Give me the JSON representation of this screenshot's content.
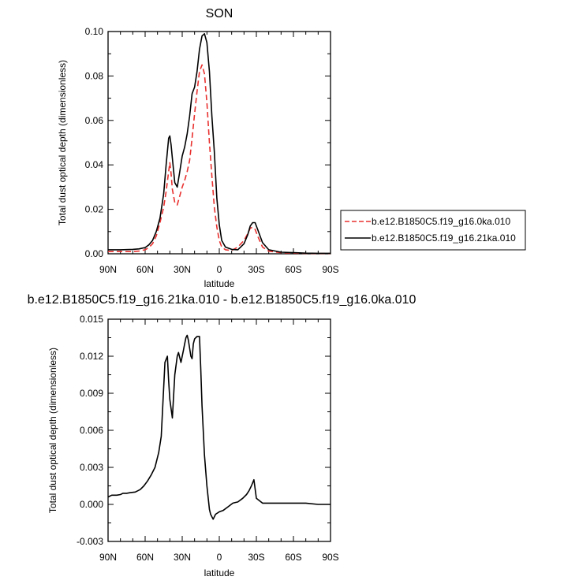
{
  "chart_data": [
    {
      "type": "line",
      "title": "SON",
      "xlabel": "latitude",
      "ylabel": "Total dust optical depth (dimensionless)",
      "xlim": [
        90,
        -90
      ],
      "ylim": [
        0,
        0.1
      ],
      "yticks": [
        "0.00",
        "0.02",
        "0.04",
        "0.06",
        "0.08",
        "0.10"
      ],
      "xticks": [
        {
          "value": 90,
          "label": "90N"
        },
        {
          "value": 60,
          "label": "60N"
        },
        {
          "value": 30,
          "label": "30N"
        },
        {
          "value": 0,
          "label": "0"
        },
        {
          "value": -30,
          "label": "30S"
        },
        {
          "value": -60,
          "label": "60S"
        },
        {
          "value": -90,
          "label": "90S"
        }
      ],
      "legend_position": "right",
      "series": [
        {
          "name": "b.e12.B1850C5.f19_g16.0ka.010",
          "color": "#e8312f",
          "dashed": true,
          "x": [
            90,
            80,
            70,
            65,
            60,
            57,
            54,
            51,
            48,
            45,
            43,
            41,
            40,
            39,
            38,
            36,
            34,
            32,
            30,
            28,
            26,
            24,
            22,
            20,
            18,
            16,
            14,
            12,
            10,
            8,
            6,
            4,
            2,
            0,
            -2,
            -5,
            -10,
            -15,
            -20,
            -23,
            -25,
            -27,
            -29,
            -31,
            -35,
            -40,
            -50,
            -60,
            -70,
            -80,
            -90
          ],
          "values": [
            0.001,
            0.001,
            0.001,
            0.0012,
            0.0018,
            0.0028,
            0.0045,
            0.008,
            0.014,
            0.021,
            0.028,
            0.037,
            0.041,
            0.036,
            0.029,
            0.023,
            0.022,
            0.026,
            0.03,
            0.033,
            0.037,
            0.042,
            0.052,
            0.063,
            0.073,
            0.082,
            0.085,
            0.081,
            0.068,
            0.05,
            0.035,
            0.021,
            0.012,
            0.006,
            0.003,
            0.0018,
            0.0015,
            0.003,
            0.006,
            0.009,
            0.0115,
            0.012,
            0.011,
            0.008,
            0.003,
            0.0012,
            0.0005,
            0.0003,
            0.0002,
            0.0001,
            0.0001
          ]
        },
        {
          "name": "b.e12.B1850C5.f19_g16.21ka.010",
          "color": "#000000",
          "dashed": false,
          "x": [
            90,
            80,
            70,
            65,
            60,
            57,
            54,
            51,
            48,
            45,
            43,
            41,
            40,
            39,
            38,
            36,
            34,
            32,
            30,
            28,
            26,
            24,
            22,
            20,
            18,
            16,
            14,
            12,
            10,
            8,
            6,
            4,
            2,
            0,
            -2,
            -5,
            -10,
            -15,
            -20,
            -23,
            -25,
            -27,
            -29,
            -31,
            -35,
            -40,
            -50,
            -60,
            -70,
            -80,
            -90
          ],
          "values": [
            0.0018,
            0.0018,
            0.002,
            0.0022,
            0.0028,
            0.004,
            0.006,
            0.01,
            0.016,
            0.027,
            0.04,
            0.052,
            0.053,
            0.049,
            0.043,
            0.032,
            0.03,
            0.037,
            0.044,
            0.048,
            0.054,
            0.062,
            0.072,
            0.075,
            0.082,
            0.092,
            0.098,
            0.099,
            0.095,
            0.082,
            0.062,
            0.046,
            0.025,
            0.013,
            0.006,
            0.003,
            0.002,
            0.0018,
            0.0045,
            0.0085,
            0.0125,
            0.014,
            0.014,
            0.011,
            0.005,
            0.0018,
            0.0007,
            0.0005,
            0.0003,
            0.0002,
            0.0002
          ]
        }
      ]
    },
    {
      "type": "line",
      "title": "b.e12.B1850C5.f19_g16.21ka.010 - b.e12.B1850C5.f19_g16.0ka.010",
      "xlabel": "latitude",
      "ylabel": "Total dust optical depth (dimensionless)",
      "xlim": [
        90,
        -90
      ],
      "ylim": [
        -0.003,
        0.015
      ],
      "yticks": [
        "-0.003",
        "0.000",
        "0.003",
        "0.006",
        "0.009",
        "0.012",
        "0.015"
      ],
      "xticks": [
        {
          "value": 90,
          "label": "90N"
        },
        {
          "value": 60,
          "label": "60N"
        },
        {
          "value": 30,
          "label": "30N"
        },
        {
          "value": 0,
          "label": "0"
        },
        {
          "value": -30,
          "label": "30S"
        },
        {
          "value": -60,
          "label": "60S"
        },
        {
          "value": -90,
          "label": "90S"
        }
      ],
      "series": [
        {
          "color": "#000000",
          "dashed": false,
          "x": [
            90,
            87,
            83,
            80,
            78,
            75,
            72,
            68,
            64,
            61,
            58,
            55,
            52,
            49,
            47,
            44,
            42,
            41,
            40,
            38,
            36,
            34,
            33,
            31,
            29,
            28,
            27,
            26,
            25,
            23,
            22,
            21,
            20,
            19,
            18,
            17,
            16,
            15,
            14,
            12,
            10,
            8,
            7,
            5,
            3,
            0,
            -3,
            -7,
            -11,
            -15,
            -19,
            -22,
            -24,
            -26,
            -28,
            -30,
            -35,
            -40,
            -50,
            -60,
            -70,
            -80,
            -90
          ],
          "values": [
            0.0006,
            0.00075,
            0.00075,
            0.0008,
            0.0009,
            0.0009,
            0.00095,
            0.001,
            0.0012,
            0.0015,
            0.0019,
            0.0024,
            0.003,
            0.0042,
            0.0055,
            0.0115,
            0.012,
            0.01,
            0.0085,
            0.007,
            0.0105,
            0.012,
            0.0123,
            0.0115,
            0.0125,
            0.013,
            0.0135,
            0.0137,
            0.0133,
            0.012,
            0.0118,
            0.013,
            0.0134,
            0.0135,
            0.0136,
            0.0136,
            0.0136,
            0.011,
            0.008,
            0.004,
            0.0015,
            -0.0004,
            -0.0008,
            -0.0012,
            -0.0008,
            -0.0006,
            -0.0005,
            -0.0002,
            0.0001,
            0.0002,
            0.0005,
            0.0008,
            0.0011,
            0.0015,
            0.002,
            0.0005,
            0.0001,
            0.0001,
            0.0001,
            0.0001,
            0.0001,
            0.0,
            0.0
          ]
        }
      ]
    }
  ]
}
